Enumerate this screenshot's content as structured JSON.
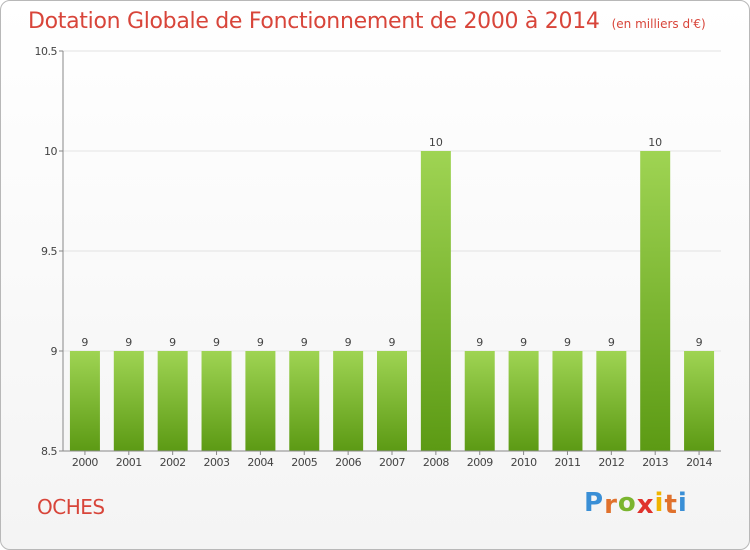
{
  "title": "Dotation Globale de Fonctionnement de 2000 à 2014",
  "subtitle": "(en milliers d'€)",
  "commune": "OCHES",
  "logo": {
    "text": "Proxiti",
    "letter_colors": [
      "#3a8fd6",
      "#e0712c",
      "#7ab52f",
      "#e0322c",
      "#f0b400",
      "#e0712c",
      "#3a8fd6"
    ]
  },
  "colors": {
    "title": "#d8453a",
    "bar_top": "#9fd453",
    "bar_bottom": "#5c9a14",
    "grid": "#e3e3e3",
    "axis": "#888888"
  },
  "chart_data": {
    "type": "bar",
    "title": "Dotation Globale de Fonctionnement de 2000 à 2014",
    "subtitle": "(en milliers d'€)",
    "categories": [
      "2000",
      "2001",
      "2002",
      "2003",
      "2004",
      "2005",
      "2006",
      "2007",
      "2008",
      "2009",
      "2010",
      "2011",
      "2012",
      "2013",
      "2014"
    ],
    "values": [
      9,
      9,
      9,
      9,
      9,
      9,
      9,
      9,
      10,
      9,
      9,
      9,
      9,
      10,
      9
    ],
    "ylim": [
      8.5,
      10.5
    ],
    "yticks": [
      "8.5",
      "9",
      "9.5",
      "10",
      "10.5"
    ],
    "grid": true,
    "data_labels": true
  }
}
